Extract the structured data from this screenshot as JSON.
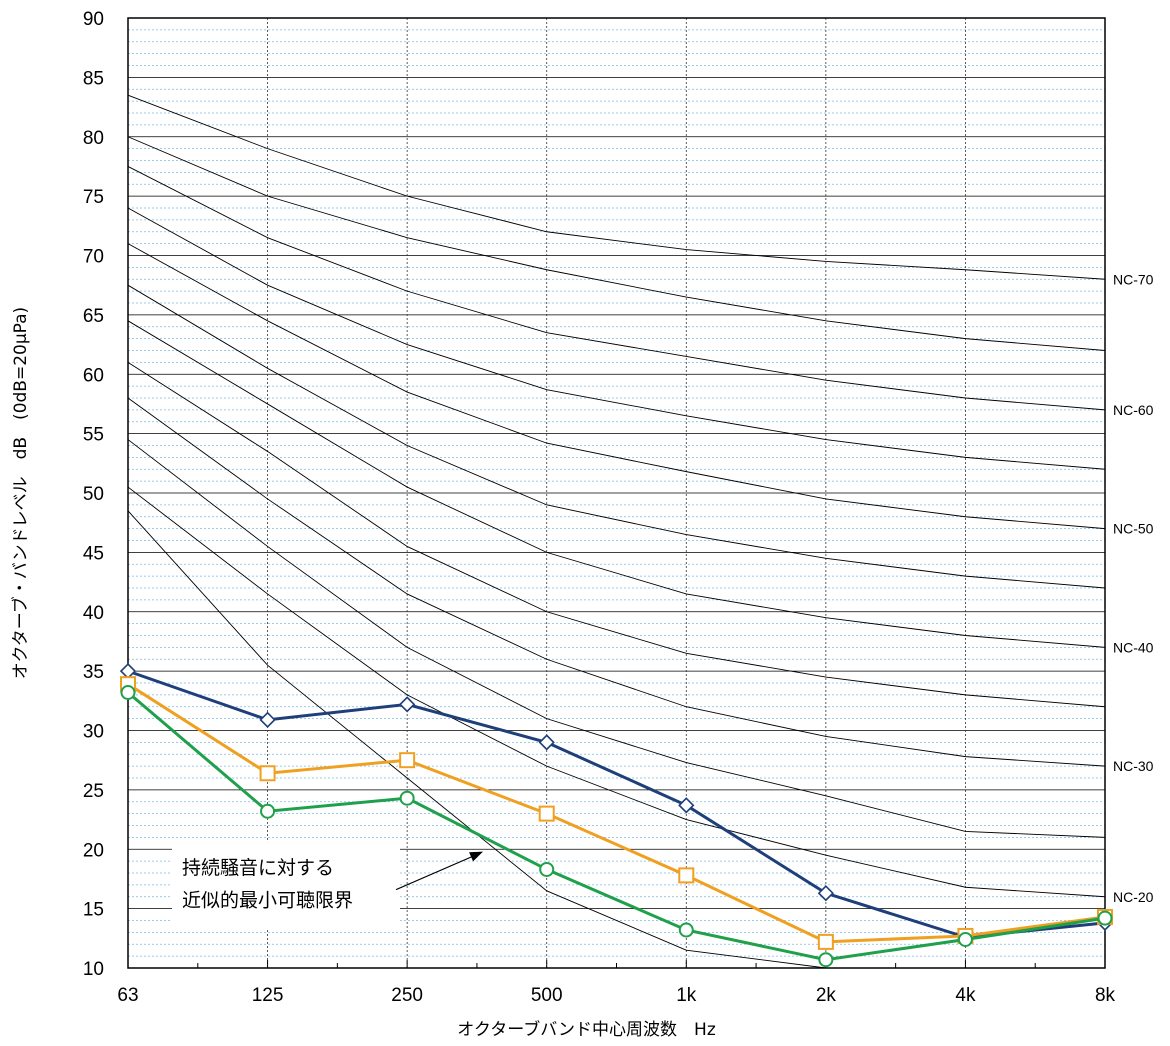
{
  "chart_data": {
    "type": "line",
    "xlabel": "オクターブバンド中心周波数　Hz",
    "ylabel": "オクターブ・バンドレベル　dB　(0dB=20μPa)",
    "x_categories": [
      "63",
      "125",
      "250",
      "500",
      "1k",
      "2k",
      "4k",
      "8k"
    ],
    "y_ticks": [
      10,
      15,
      20,
      25,
      30,
      35,
      40,
      45,
      50,
      55,
      60,
      65,
      70,
      75,
      80,
      85,
      90
    ],
    "ylim": [
      10,
      90
    ],
    "grid": true,
    "nc_labels": [
      "NC-70",
      "NC-60",
      "NC-50",
      "NC-40",
      "NC-30",
      "NC-20"
    ],
    "nc_curves": [
      [
        83.5,
        79,
        75,
        72,
        70.5,
        69.5,
        68.8,
        68
      ],
      [
        80,
        75,
        71.5,
        68.8,
        66.5,
        64.5,
        63,
        62
      ],
      [
        77.5,
        71.5,
        67,
        63.5,
        61.5,
        59.5,
        58,
        57
      ],
      [
        74,
        67.5,
        62.5,
        58.7,
        56.5,
        54.5,
        53,
        52
      ],
      [
        71,
        64.5,
        58.5,
        54.2,
        51.8,
        49.5,
        48,
        47
      ],
      [
        67.5,
        60.5,
        54,
        49,
        46.5,
        44.5,
        43,
        42
      ],
      [
        64.5,
        57.5,
        50.5,
        45,
        41.5,
        39.5,
        38,
        37
      ],
      [
        61,
        53.5,
        45.5,
        40,
        36.5,
        34.5,
        33,
        32
      ],
      [
        58,
        49.5,
        41.5,
        36,
        32,
        29.5,
        27.8,
        27
      ],
      [
        54.5,
        45.5,
        37,
        31,
        27.3,
        24.5,
        21.5,
        21
      ],
      [
        50.5,
        41.5,
        33,
        27,
        22.5,
        19.5,
        16.8,
        16
      ]
    ],
    "threshold_curve": [
      48.5,
      35.5,
      26,
      16.5,
      11.5,
      9.8,
      9.5,
      9.5
    ],
    "series": [
      {
        "values": [
          35,
          30.9,
          32.2,
          29,
          23.7,
          16.3,
          12.6,
          13.8
        ],
        "color": "#1f3f7a",
        "marker": "diamond"
      },
      {
        "values": [
          33.9,
          26.4,
          27.5,
          23,
          17.8,
          12.2,
          12.7,
          14.3
        ],
        "color": "#f0a020",
        "marker": "square"
      },
      {
        "values": [
          33.2,
          23.2,
          24.3,
          18.3,
          13.2,
          10.7,
          12.4,
          14.2
        ],
        "color": "#1fa04a",
        "marker": "circle"
      }
    ],
    "annotation": {
      "line1": "持続騒音に対する",
      "line2": "近似的最小可聴限界"
    }
  }
}
